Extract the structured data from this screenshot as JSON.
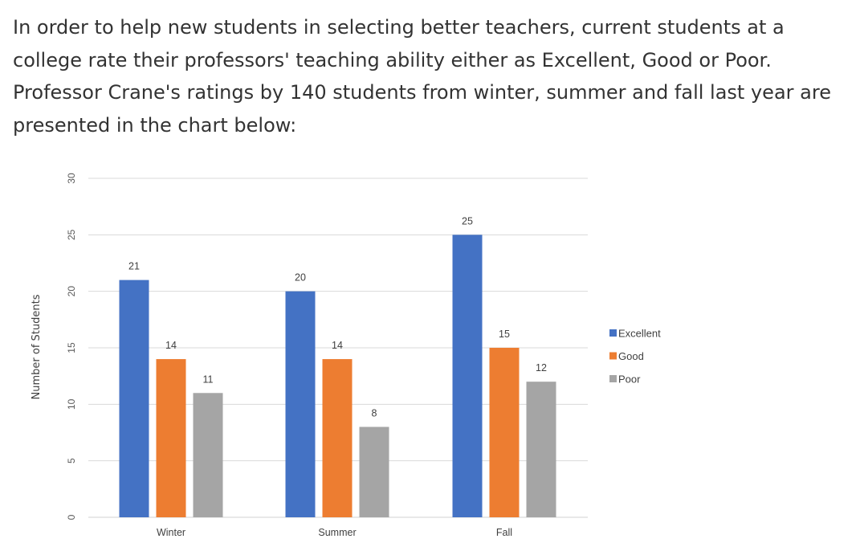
{
  "question": {
    "text": "In order to help new students in selecting better teachers, current students at a college rate their professors' teaching ability either as Excellent, Good or Poor. Professor Crane's ratings by 140 students from winter, summer and fall last year are presented in the chart below:"
  },
  "chart_data": {
    "type": "bar",
    "title": "",
    "xlabel": "",
    "ylabel": "Number of Students",
    "categories": [
      "Winter",
      "Summer",
      "Fall"
    ],
    "series": [
      {
        "name": "Excellent",
        "values": [
          21,
          20,
          25
        ],
        "color": "#4472C4"
      },
      {
        "name": "Good",
        "values": [
          14,
          14,
          15
        ],
        "color": "#ED7D31"
      },
      {
        "name": "Poor",
        "values": [
          11,
          8,
          12
        ],
        "color": "#A5A5A5"
      }
    ],
    "ylim": [
      0,
      30
    ],
    "yticks": [
      0,
      5,
      10,
      15,
      20,
      25,
      30
    ],
    "grid": true,
    "data_labels": true,
    "legend_position": "right"
  }
}
